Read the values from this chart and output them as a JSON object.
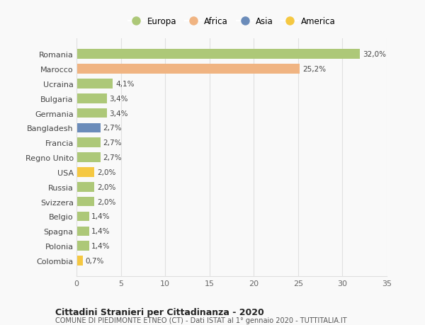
{
  "countries": [
    "Romania",
    "Marocco",
    "Ucraina",
    "Bulgaria",
    "Germania",
    "Bangladesh",
    "Francia",
    "Regno Unito",
    "USA",
    "Russia",
    "Svizzera",
    "Belgio",
    "Spagna",
    "Polonia",
    "Colombia"
  ],
  "values": [
    32.0,
    25.2,
    4.1,
    3.4,
    3.4,
    2.7,
    2.7,
    2.7,
    2.0,
    2.0,
    2.0,
    1.4,
    1.4,
    1.4,
    0.7
  ],
  "labels": [
    "32,0%",
    "25,2%",
    "4,1%",
    "3,4%",
    "3,4%",
    "2,7%",
    "2,7%",
    "2,7%",
    "2,0%",
    "2,0%",
    "2,0%",
    "1,4%",
    "1,4%",
    "1,4%",
    "0,7%"
  ],
  "colors": [
    "#adc878",
    "#f0b482",
    "#adc878",
    "#adc878",
    "#adc878",
    "#6b8cba",
    "#adc878",
    "#adc878",
    "#f5c842",
    "#adc878",
    "#adc878",
    "#adc878",
    "#adc878",
    "#adc878",
    "#f5c842"
  ],
  "legend": [
    {
      "label": "Europa",
      "color": "#adc878"
    },
    {
      "label": "Africa",
      "color": "#f0b482"
    },
    {
      "label": "Asia",
      "color": "#6b8cba"
    },
    {
      "label": "America",
      "color": "#f5c842"
    }
  ],
  "xlim": [
    0,
    35
  ],
  "xticks": [
    0,
    5,
    10,
    15,
    20,
    25,
    30,
    35
  ],
  "title": "Cittadini Stranieri per Cittadinanza - 2020",
  "subtitle": "COMUNE DI PIEDIMONTE ETNEO (CT) - Dati ISTAT al 1° gennaio 2020 - TUTTITALIA.IT",
  "background_color": "#f9f9f9",
  "grid_color": "#e0e0e0"
}
